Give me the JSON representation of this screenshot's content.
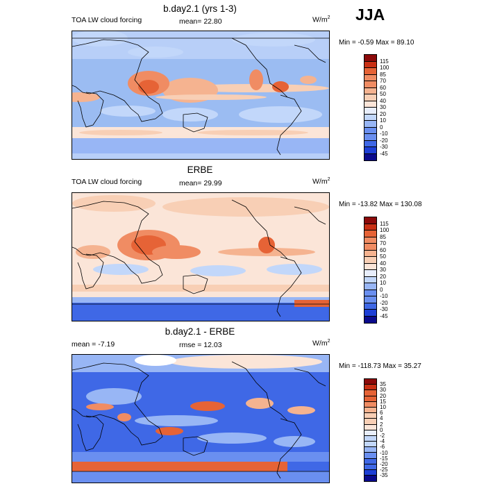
{
  "season": "JJA",
  "unit_base": "W/m",
  "unit_exp": "2",
  "colors": {
    "main": [
      "#0a0a8c",
      "#1d3fd6",
      "#3f68e6",
      "#6a8ff0",
      "#98b6f5",
      "#c2d7fa",
      "#e8eefb",
      "#fbe5d8",
      "#f8cfb5",
      "#f5b390",
      "#f08c63",
      "#e66336",
      "#c93014",
      "#8c0a0a"
    ],
    "diff": [
      "#0a0a8c",
      "#1d3fd6",
      "#3f68e6",
      "#6a8ff0",
      "#98b6f5",
      "#c2d7fa",
      "#e8eefb",
      "#fbe5d8",
      "#f8cfb5",
      "#f5b390",
      "#f08c63",
      "#e66336",
      "#c93014",
      "#8c0a0a"
    ]
  },
  "panels": [
    {
      "title": "b.day2.1 (yrs 1-3)",
      "left_label": "TOA LW cloud forcing",
      "center_label": "mean=  22.80",
      "minmax": "Min =  -0.59 Max =  89.10",
      "ticks": [
        "115",
        "100",
        "85",
        "70",
        "60",
        "50",
        "40",
        "30",
        "20",
        "10",
        "0",
        "-10",
        "-20",
        "-30",
        "-45"
      ]
    },
    {
      "title": "ERBE",
      "left_label": "TOA LW cloud forcing",
      "center_label": "mean=  29.99",
      "minmax": "Min = -13.82 Max = 130.08",
      "ticks": [
        "115",
        "100",
        "85",
        "70",
        "60",
        "50",
        "40",
        "30",
        "20",
        "10",
        "0",
        "-10",
        "-20",
        "-30",
        "-45"
      ]
    },
    {
      "title": "b.day2.1 - ERBE",
      "left_label": "mean =  -7.19",
      "center_label": "rmse =  12.03",
      "minmax": "Min = -118.73 Max =  35.27",
      "ticks": [
        "35",
        "30",
        "20",
        "15",
        "10",
        "6",
        "4",
        "2",
        "0",
        "-2",
        "-4",
        "-6",
        "-10",
        "-15",
        "-20",
        "-25",
        "-35"
      ]
    }
  ]
}
